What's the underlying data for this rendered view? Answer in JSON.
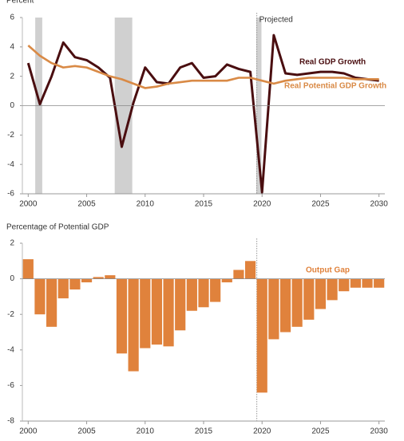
{
  "chart_data": [
    {
      "type": "line",
      "y_label": "Percent",
      "x": [
        2000,
        2001,
        2002,
        2003,
        2004,
        2005,
        2006,
        2007,
        2008,
        2009,
        2010,
        2011,
        2012,
        2013,
        2014,
        2015,
        2016,
        2017,
        2018,
        2019,
        2020,
        2021,
        2022,
        2023,
        2024,
        2025,
        2026,
        2027,
        2028,
        2029,
        2030
      ],
      "series": [
        {
          "name": "Real GDP Growth",
          "color": "#4a0e10",
          "values": [
            2.9,
            0.1,
            2.0,
            4.3,
            3.3,
            3.1,
            2.6,
            1.9,
            -2.8,
            0.2,
            2.6,
            1.6,
            1.5,
            2.6,
            2.9,
            1.9,
            2.0,
            2.8,
            2.5,
            2.3,
            -5.9,
            4.8,
            2.2,
            2.1,
            2.2,
            2.3,
            2.3,
            2.2,
            1.9,
            1.8,
            1.7
          ]
        },
        {
          "name": "Real Potential GDP Growth",
          "color": "#d98a46",
          "values": [
            4.1,
            3.4,
            2.9,
            2.6,
            2.7,
            2.6,
            2.3,
            2.0,
            1.8,
            1.5,
            1.2,
            1.3,
            1.5,
            1.6,
            1.7,
            1.7,
            1.7,
            1.7,
            1.9,
            1.9,
            1.7,
            1.5,
            1.7,
            1.8,
            1.9,
            1.9,
            1.9,
            1.9,
            1.8,
            1.8,
            1.8
          ]
        }
      ],
      "shaded_ranges": [
        [
          2000.6,
          2001.2
        ],
        [
          2007.4,
          2008.9
        ],
        [
          2019.5,
          2019.95
        ]
      ],
      "projection_start": 2019.55,
      "projection_label": "Projected",
      "xlim": [
        1999.5,
        2030.5
      ],
      "xticks": [
        2000,
        2005,
        2010,
        2015,
        2020,
        2025,
        2030
      ],
      "ylim": [
        -6,
        6
      ],
      "yticks": [
        -6,
        -4,
        -2,
        0,
        2,
        4,
        6
      ]
    },
    {
      "type": "bar",
      "y_label": "Percentage of Potential GDP",
      "x": [
        2000,
        2001,
        2002,
        2003,
        2004,
        2005,
        2006,
        2007,
        2008,
        2009,
        2010,
        2011,
        2012,
        2013,
        2014,
        2015,
        2016,
        2017,
        2018,
        2019,
        2020,
        2021,
        2022,
        2023,
        2024,
        2025,
        2026,
        2027,
        2028,
        2029,
        2030
      ],
      "series": [
        {
          "name": "Output Gap",
          "color": "#e0823c",
          "values": [
            1.1,
            -2.0,
            -2.7,
            -1.1,
            -0.6,
            -0.2,
            0.1,
            0.2,
            -4.2,
            -5.2,
            -3.9,
            -3.7,
            -3.8,
            -2.9,
            -1.8,
            -1.6,
            -1.3,
            -0.2,
            0.5,
            1.0,
            -6.4,
            -3.4,
            -3.0,
            -2.7,
            -2.3,
            -1.7,
            -1.2,
            -0.7,
            -0.5,
            -0.5,
            -0.5
          ]
        }
      ],
      "projection_start": 2019.55,
      "xlim": [
        1999.5,
        2030.5
      ],
      "xticks": [
        2000,
        2005,
        2010,
        2015,
        2020,
        2025,
        2030
      ],
      "ylim": [
        -8,
        2
      ],
      "yticks": [
        -8,
        -6,
        -4,
        -2,
        0,
        2
      ]
    }
  ]
}
